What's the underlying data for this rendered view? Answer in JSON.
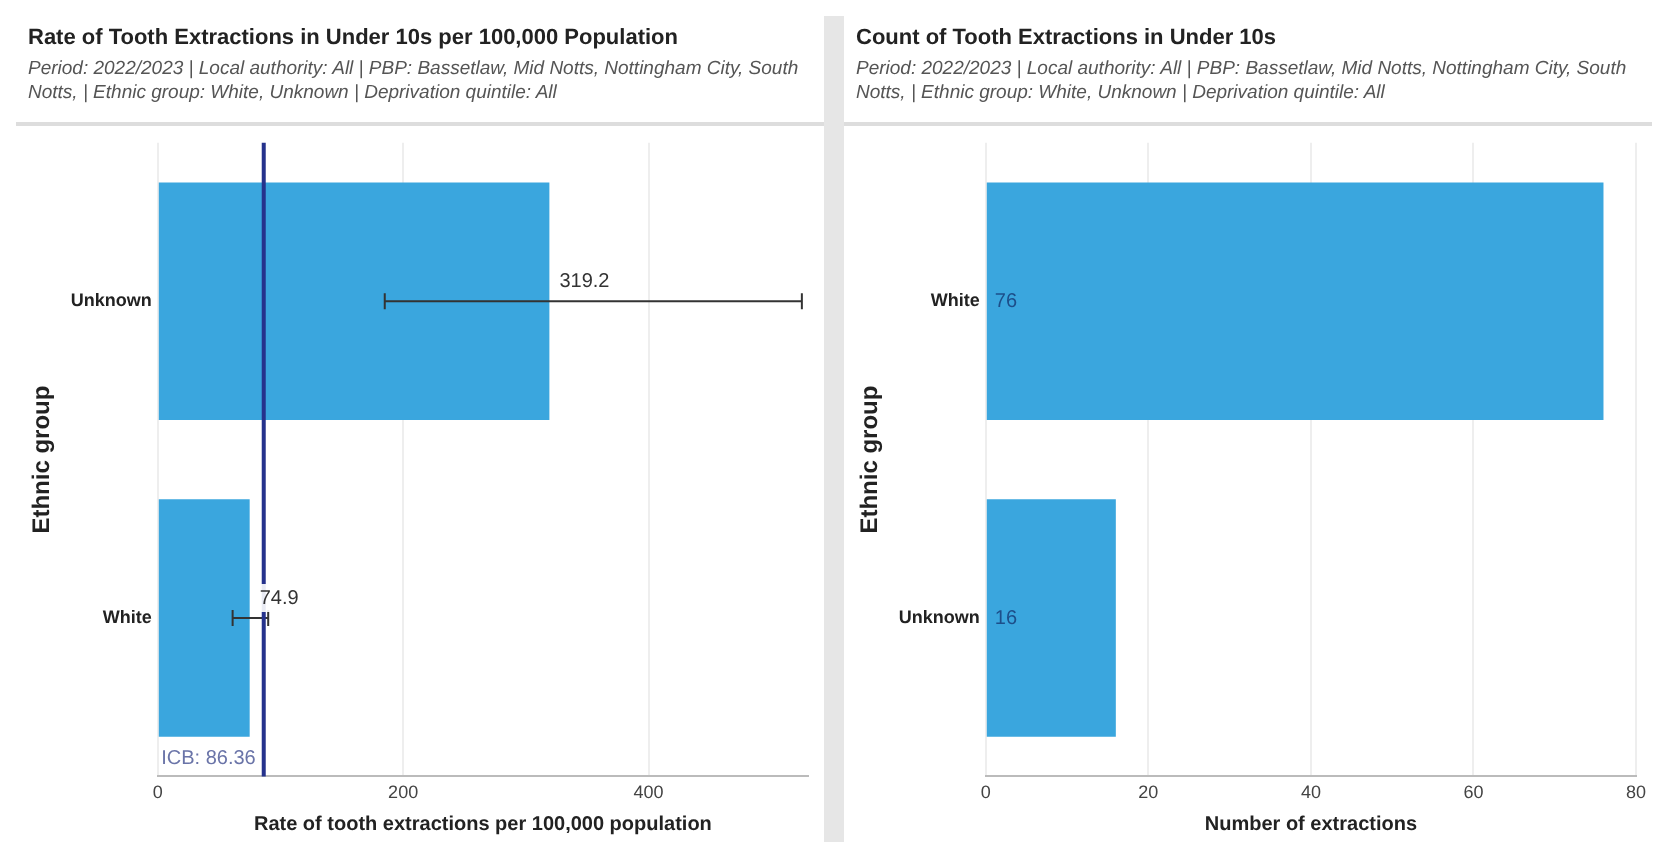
{
  "chart_data": [
    {
      "type": "bar",
      "orientation": "horizontal",
      "title": "Rate of Tooth Extractions in Under 10s per 100,000 Population",
      "subtitle": "Period: 2022/2023 | Local authority: All | PBP: Bassetlaw, Mid Notts, Nottingham City, South Notts, | Ethnic group: White, Unknown | Deprivation quintile: All",
      "xlabel": "Rate of tooth extractions per 100,000 population",
      "ylabel": "Ethnic group",
      "categories": [
        "Unknown",
        "White"
      ],
      "values": [
        319.2,
        74.9
      ],
      "color": "#3aa6de",
      "errors": [
        [
          185,
          525
        ],
        [
          61,
          90
        ]
      ],
      "data_labels": true,
      "xlim": [
        0,
        530
      ],
      "xticks": [
        0,
        200,
        400
      ],
      "grid": "x",
      "legend": false,
      "ref_lines": [
        {
          "axis": "x",
          "value": 86.36,
          "label": "ICB: 86.36",
          "color": "#25328c"
        }
      ]
    },
    {
      "type": "bar",
      "orientation": "horizontal",
      "title": "Count of Tooth Extractions in Under 10s",
      "subtitle": "Period: 2022/2023 | Local authority: All | PBP: Bassetlaw, Mid Notts, Nottingham City, South Notts, | Ethnic group: White, Unknown | Deprivation quintile: All",
      "xlabel": "Number of extractions",
      "ylabel": "Ethnic group",
      "categories": [
        "White",
        "Unknown"
      ],
      "values": [
        76,
        16
      ],
      "color": "#3aa6de",
      "data_labels": true,
      "xlim": [
        0,
        80
      ],
      "xticks": [
        0,
        20,
        40,
        60,
        80
      ],
      "grid": "x",
      "legend": false
    }
  ]
}
